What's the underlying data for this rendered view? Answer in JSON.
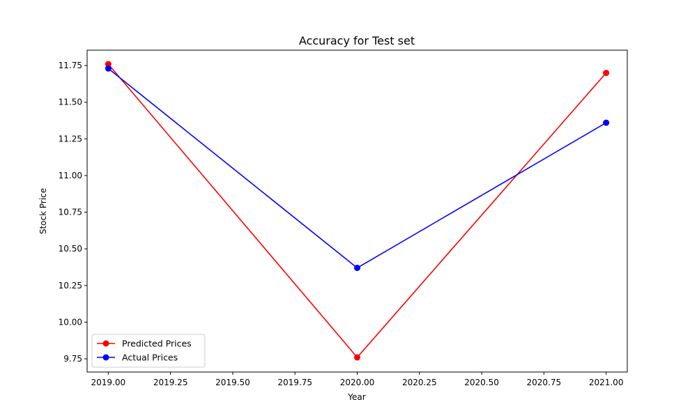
{
  "chart_data": {
    "type": "line",
    "title": "Accuracy for Test set",
    "xlabel": "Year",
    "ylabel": "Stock Price",
    "xlim": [
      2018.915,
      2021.085
    ],
    "ylim": [
      9.66,
      11.855
    ],
    "xticks": [
      2019.0,
      2019.25,
      2019.5,
      2019.75,
      2020.0,
      2020.25,
      2020.5,
      2020.75,
      2021.0
    ],
    "xtick_labels": [
      "2019.00",
      "2019.25",
      "2019.50",
      "2019.75",
      "2020.00",
      "2020.25",
      "2020.50",
      "2020.75",
      "2021.00"
    ],
    "yticks": [
      9.75,
      10.0,
      10.25,
      10.5,
      10.75,
      11.0,
      11.25,
      11.5,
      11.75
    ],
    "ytick_labels": [
      "9.75",
      "10.00",
      "10.25",
      "10.50",
      "10.75",
      "11.00",
      "11.25",
      "11.50",
      "11.75"
    ],
    "grid": false,
    "legend_position": "lower-left",
    "x": [
      2019,
      2020,
      2021
    ],
    "series": [
      {
        "name": "Predicted Prices",
        "color": "#ff0000",
        "values": [
          11.76,
          9.76,
          11.7
        ]
      },
      {
        "name": "Actual Prices",
        "color": "#0000ff",
        "values": [
          11.73,
          10.37,
          11.36
        ]
      }
    ]
  }
}
